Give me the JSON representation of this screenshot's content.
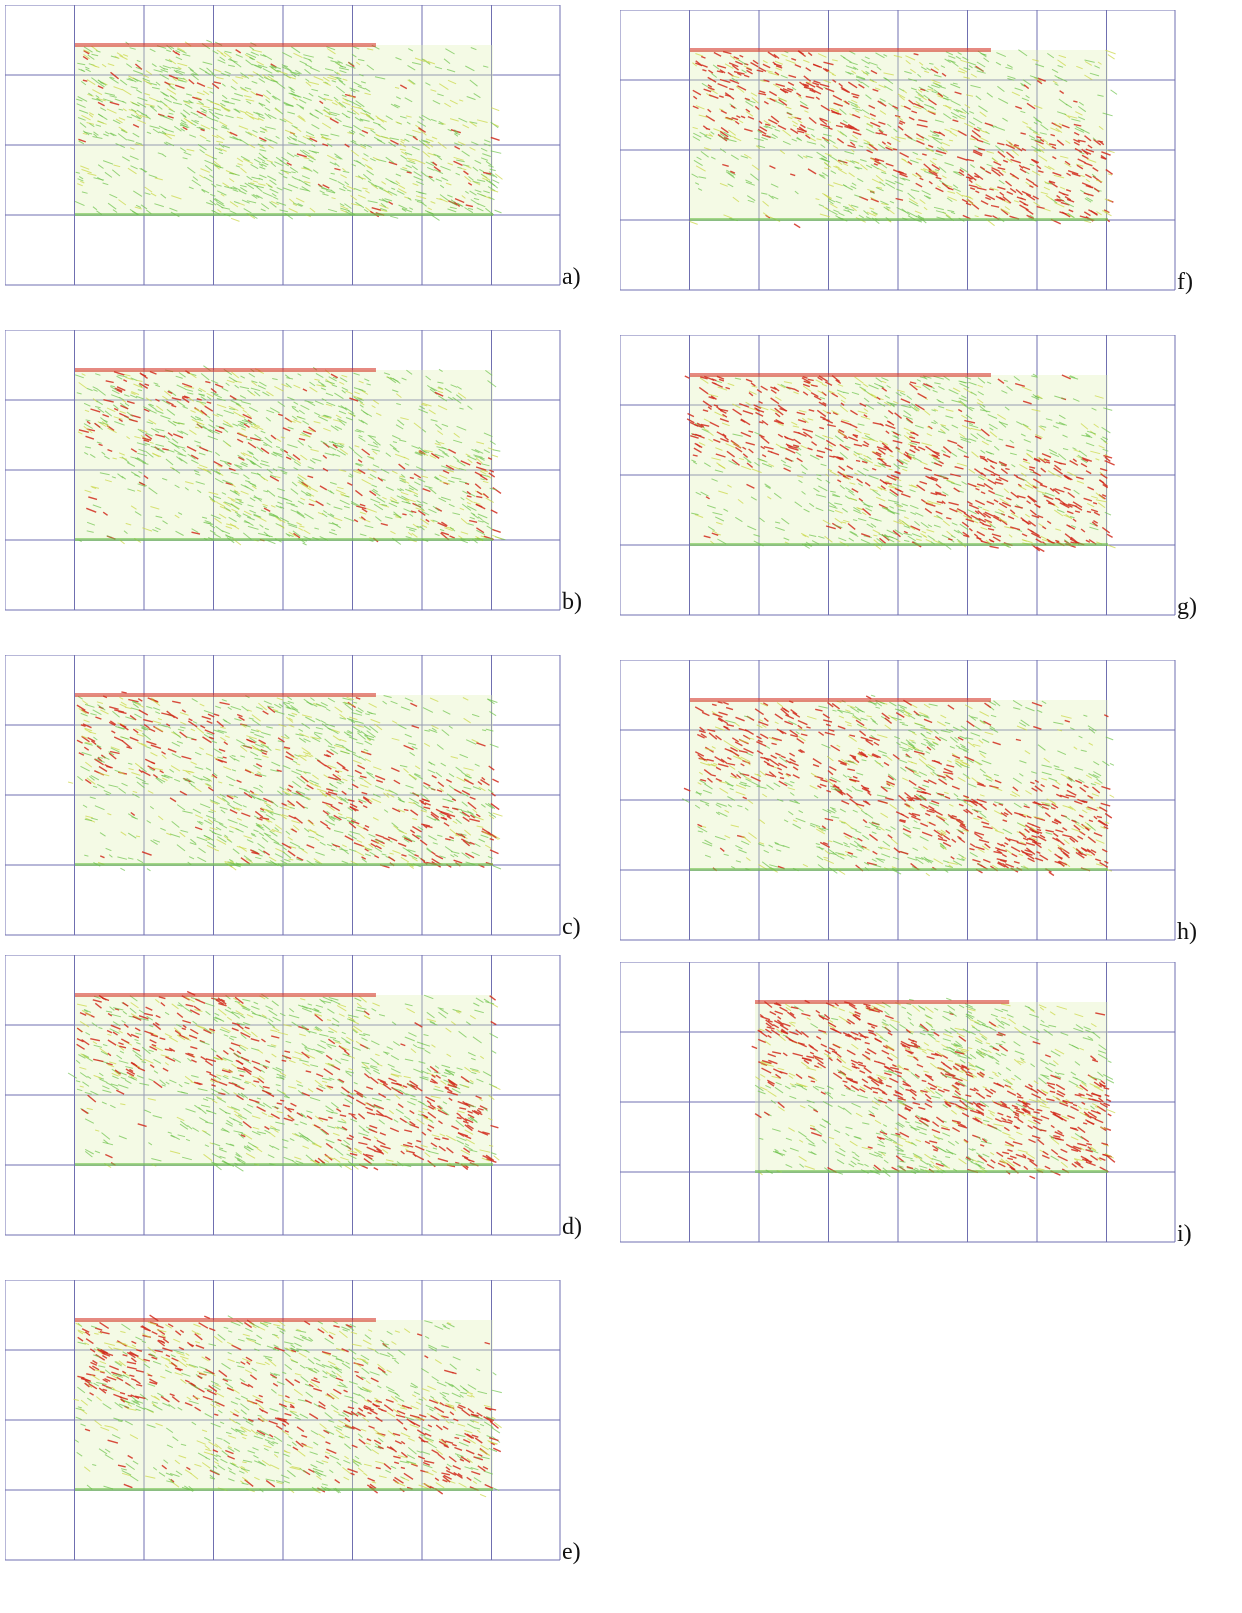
{
  "figure": {
    "colors": {
      "grid": "#6f6fb0",
      "low": "#6cc24a",
      "mid": "#c9d640",
      "high": "#d12a1c"
    },
    "panels": [
      {
        "label": "a)",
        "red_level": 0.1,
        "shift": false
      },
      {
        "label": "b)",
        "red_level": 0.3,
        "shift": false
      },
      {
        "label": "c)",
        "red_level": 0.45,
        "shift": false
      },
      {
        "label": "d)",
        "red_level": 0.55,
        "shift": false
      },
      {
        "label": "e)",
        "red_level": 0.6,
        "shift": false
      },
      {
        "label": "f)",
        "red_level": 0.7,
        "shift": false
      },
      {
        "label": "g)",
        "red_level": 0.72,
        "shift": false
      },
      {
        "label": "h)",
        "red_level": 0.75,
        "shift": false
      },
      {
        "label": "i)",
        "red_level": 0.8,
        "shift": true
      }
    ]
  }
}
